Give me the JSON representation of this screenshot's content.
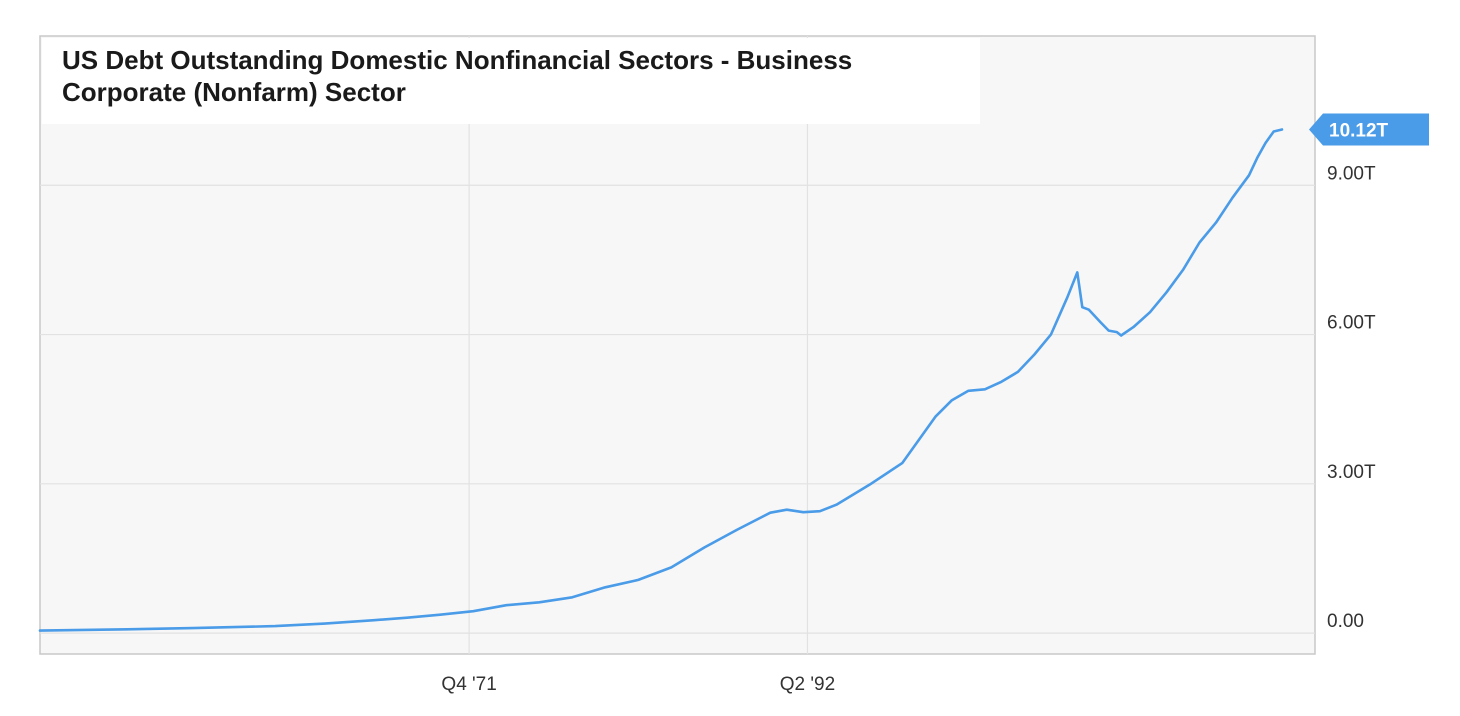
{
  "chart_data": {
    "type": "line",
    "title": "US Debt Outstanding Domestic Nonfinancial Sectors - Business Corporate (Nonfarm) Sector",
    "xlabel": "",
    "ylabel": "",
    "x_range": [
      1945.75,
      2023.0
    ],
    "ylim": [
      -0.42,
      12.0
    ],
    "y_ticks": [
      {
        "value": 0,
        "label": "0.00"
      },
      {
        "value": 3,
        "label": "3.00T"
      },
      {
        "value": 6,
        "label": "6.00T"
      },
      {
        "value": 9,
        "label": "9.00T"
      }
    ],
    "x_ticks": [
      {
        "value": 1971.75,
        "label": "Q4 '71"
      },
      {
        "value": 1992.25,
        "label": "Q2 '92"
      }
    ],
    "grid": true,
    "legend": "none",
    "line_color": "#4a9be8",
    "last_value_label": "10.12T",
    "series": [
      {
        "values": [
          {
            "x": 1945.75,
            "y": 0.05
          },
          {
            "x": 1950,
            "y": 0.07
          },
          {
            "x": 1955,
            "y": 0.1
          },
          {
            "x": 1960,
            "y": 0.14
          },
          {
            "x": 1963,
            "y": 0.19
          },
          {
            "x": 1966,
            "y": 0.26
          },
          {
            "x": 1968,
            "y": 0.31
          },
          {
            "x": 1970,
            "y": 0.37
          },
          {
            "x": 1972,
            "y": 0.44
          },
          {
            "x": 1974,
            "y": 0.56
          },
          {
            "x": 1976,
            "y": 0.62
          },
          {
            "x": 1978,
            "y": 0.72
          },
          {
            "x": 1980,
            "y": 0.92
          },
          {
            "x": 1982,
            "y": 1.07
          },
          {
            "x": 1984,
            "y": 1.32
          },
          {
            "x": 1986,
            "y": 1.72
          },
          {
            "x": 1988,
            "y": 2.08
          },
          {
            "x": 1990,
            "y": 2.42
          },
          {
            "x": 1991,
            "y": 2.48
          },
          {
            "x": 1992,
            "y": 2.43
          },
          {
            "x": 1993,
            "y": 2.45
          },
          {
            "x": 1994,
            "y": 2.58
          },
          {
            "x": 1996,
            "y": 2.98
          },
          {
            "x": 1998,
            "y": 3.42
          },
          {
            "x": 2000,
            "y": 4.35
          },
          {
            "x": 2001,
            "y": 4.68
          },
          {
            "x": 2002,
            "y": 4.87
          },
          {
            "x": 2003,
            "y": 4.9
          },
          {
            "x": 2004,
            "y": 5.05
          },
          {
            "x": 2005,
            "y": 5.25
          },
          {
            "x": 2006,
            "y": 5.6
          },
          {
            "x": 2007,
            "y": 6.0
          },
          {
            "x": 2008,
            "y": 6.75
          },
          {
            "x": 2008.6,
            "y": 7.25
          },
          {
            "x": 2008.9,
            "y": 6.55
          },
          {
            "x": 2009.3,
            "y": 6.5
          },
          {
            "x": 2010,
            "y": 6.25
          },
          {
            "x": 2010.5,
            "y": 6.08
          },
          {
            "x": 2011,
            "y": 6.05
          },
          {
            "x": 2011.25,
            "y": 5.98
          },
          {
            "x": 2012,
            "y": 6.15
          },
          {
            "x": 2013,
            "y": 6.45
          },
          {
            "x": 2014,
            "y": 6.85
          },
          {
            "x": 2015,
            "y": 7.3
          },
          {
            "x": 2016,
            "y": 7.85
          },
          {
            "x": 2017,
            "y": 8.25
          },
          {
            "x": 2018,
            "y": 8.75
          },
          {
            "x": 2019,
            "y": 9.2
          },
          {
            "x": 2019.5,
            "y": 9.55
          },
          {
            "x": 2020,
            "y": 9.85
          },
          {
            "x": 2020.5,
            "y": 10.08
          },
          {
            "x": 2021,
            "y": 10.12
          }
        ]
      }
    ]
  }
}
